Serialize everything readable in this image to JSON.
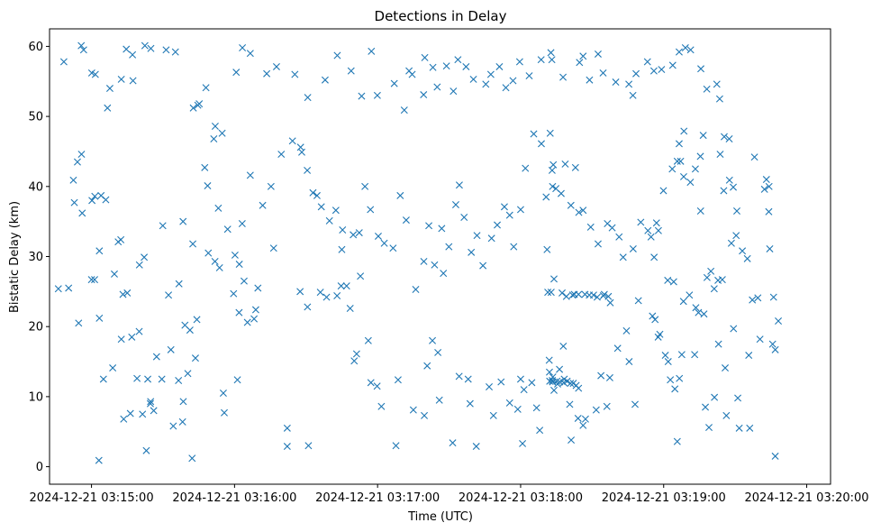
{
  "chart_data": {
    "type": "scatter",
    "title": "Detections in Delay",
    "xlabel": "Time (UTC)",
    "ylabel": "Bistatic Delay (km)",
    "marker": "x",
    "color": "#1f77b4",
    "x_unit": "seconds after 2024-12-21 03:14:00 UTC",
    "xlim": [
      42.4,
      370
    ],
    "ylim": [
      -2.5,
      62.5
    ],
    "x_ticks": [
      {
        "value": 60,
        "label": "2024-12-21 03:15:00"
      },
      {
        "value": 120,
        "label": "2024-12-21 03:16:00"
      },
      {
        "value": 180,
        "label": "2024-12-21 03:17:00"
      },
      {
        "value": 240,
        "label": "2024-12-21 03:18:00"
      },
      {
        "value": 300,
        "label": "2024-12-21 03:19:00"
      },
      {
        "value": 360,
        "label": "2024-12-21 03:20:00"
      }
    ],
    "y_ticks": [
      {
        "value": 0,
        "label": "0"
      },
      {
        "value": 10,
        "label": "10"
      },
      {
        "value": 20,
        "label": "20"
      },
      {
        "value": 30,
        "label": "30"
      },
      {
        "value": 40,
        "label": "40"
      },
      {
        "value": 50,
        "label": "50"
      },
      {
        "value": 60,
        "label": "60"
      }
    ],
    "points": [
      [
        63.1,
        0.9
      ],
      [
        83.0,
        2.3
      ],
      [
        94.3,
        5.8
      ],
      [
        102.2,
        1.2
      ],
      [
        187.7,
        3.0
      ],
      [
        240.8,
        3.3
      ],
      [
        261.2,
        3.8
      ],
      [
        264.1,
        6.9
      ],
      [
        267.2,
        6.8
      ],
      [
        305.7,
        3.6
      ],
      [
        336.1,
        5.5
      ],
      [
        346.8,
        1.5
      ],
      [
        60.0,
        26.7
      ],
      [
        61.3,
        26.7
      ],
      [
        63.3,
        30.8
      ],
      [
        63.3,
        21.2
      ],
      [
        65.0,
        12.5
      ],
      [
        69.6,
        27.5
      ],
      [
        72.3,
        32.4
      ],
      [
        73.2,
        24.6
      ],
      [
        75.0,
        24.8
      ],
      [
        76.9,
        18.5
      ],
      [
        80.0,
        19.3
      ],
      [
        82.1,
        29.9
      ],
      [
        80.1,
        28.8
      ],
      [
        87.3,
        15.7
      ],
      [
        89.5,
        12.5
      ],
      [
        93.3,
        16.7
      ],
      [
        96.5,
        12.3
      ],
      [
        96.7,
        26.1
      ],
      [
        98.2,
        6.4
      ],
      [
        98.5,
        9.3
      ],
      [
        99.2,
        20.2
      ],
      [
        101.3,
        19.5
      ],
      [
        102.5,
        31.8
      ],
      [
        104.2,
        21.0
      ],
      [
        109.0,
        30.5
      ],
      [
        111.8,
        29.3
      ],
      [
        113.7,
        28.4
      ],
      [
        115.3,
        10.5
      ],
      [
        115.7,
        7.7
      ],
      [
        119.6,
        24.7
      ],
      [
        121.2,
        12.4
      ],
      [
        121.9,
        22.0
      ],
      [
        124.0,
        26.5
      ],
      [
        125.4,
        20.6
      ],
      [
        128.2,
        21.1
      ],
      [
        128.9,
        22.4
      ],
      [
        129.8,
        25.5
      ],
      [
        142.1,
        5.5
      ],
      [
        142.1,
        2.9
      ],
      [
        147.5,
        25.0
      ],
      [
        150.6,
        22.8
      ],
      [
        151.0,
        3.0
      ],
      [
        156.0,
        24.9
      ],
      [
        158.6,
        24.2
      ],
      [
        163.0,
        24.4
      ],
      [
        164.7,
        25.8
      ],
      [
        167.0,
        25.8
      ],
      [
        168.5,
        22.6
      ],
      [
        170.2,
        15.1
      ],
      [
        171.2,
        16.1
      ],
      [
        176.1,
        18.0
      ],
      [
        177.2,
        12.0
      ],
      [
        179.8,
        11.5
      ],
      [
        181.6,
        8.6
      ],
      [
        188.6,
        12.4
      ],
      [
        195.0,
        8.1
      ],
      [
        199.6,
        7.3
      ],
      [
        200.8,
        14.4
      ],
      [
        203.0,
        18.0
      ],
      [
        205.3,
        16.3
      ],
      [
        205.9,
        9.5
      ],
      [
        211.5,
        3.4
      ],
      [
        214.2,
        12.9
      ],
      [
        218.0,
        12.5
      ],
      [
        218.8,
        9.0
      ],
      [
        221.4,
        2.9
      ],
      [
        226.8,
        11.4
      ],
      [
        228.6,
        7.3
      ],
      [
        231.8,
        12.1
      ],
      [
        235.4,
        9.1
      ],
      [
        238.8,
        8.2
      ],
      [
        240.0,
        12.5
      ],
      [
        241.4,
        11.0
      ],
      [
        244.7,
        12.0
      ],
      [
        246.7,
        8.4
      ],
      [
        248.0,
        5.2
      ],
      [
        252.0,
        15.2
      ],
      [
        254.0,
        10.9
      ],
      [
        256.3,
        13.9
      ],
      [
        257.9,
        17.2
      ],
      [
        260.6,
        8.9
      ],
      [
        266.2,
        5.9
      ],
      [
        271.7,
        8.1
      ],
      [
        273.7,
        13.0
      ],
      [
        276.2,
        8.6
      ],
      [
        277.4,
        12.7
      ],
      [
        280.7,
        16.9
      ],
      [
        284.4,
        19.4
      ],
      [
        285.5,
        15.0
      ],
      [
        288.0,
        8.9
      ],
      [
        295.3,
        21.5
      ],
      [
        296.4,
        21.0
      ],
      [
        297.7,
        18.5
      ],
      [
        298.4,
        18.9
      ],
      [
        300.7,
        15.9
      ],
      [
        301.9,
        15.0
      ],
      [
        302.8,
        12.4
      ],
      [
        304.7,
        11.1
      ],
      [
        306.6,
        12.6
      ],
      [
        307.6,
        16.0
      ],
      [
        313.0,
        16.0
      ],
      [
        317.5,
        8.5
      ],
      [
        319.0,
        5.6
      ],
      [
        321.3,
        9.9
      ],
      [
        323.0,
        17.5
      ],
      [
        325.8,
        14.1
      ],
      [
        326.3,
        7.3
      ],
      [
        331.1,
        9.8
      ],
      [
        331.7,
        5.5
      ],
      [
        335.7,
        15.9
      ],
      [
        340.4,
        18.2
      ],
      [
        345.7,
        17.5
      ],
      [
        348.1,
        20.8
      ],
      [
        251.4,
        24.9
      ],
      [
        252.8,
        24.9
      ],
      [
        254.0,
        26.8
      ],
      [
        257.4,
        24.8
      ],
      [
        261.8,
        24.5
      ],
      [
        268.8,
        24.5
      ],
      [
        272.1,
        24.2
      ],
      [
        274.7,
        24.4
      ],
      [
        276.8,
        24.3
      ],
      [
        277.6,
        23.4
      ],
      [
        275.1,
        24.6
      ],
      [
        259.2,
        24.3
      ],
      [
        262.5,
        24.6
      ],
      [
        264.3,
        24.6
      ],
      [
        267.0,
        24.6
      ],
      [
        270.6,
        24.5
      ],
      [
        252.2,
        12.2
      ],
      [
        253.3,
        12.3
      ],
      [
        255.2,
        12.2
      ],
      [
        256.4,
        12.1
      ],
      [
        258.1,
        12.0
      ],
      [
        259.5,
        12.2
      ],
      [
        260.9,
        11.9
      ],
      [
        262.1,
        11.9
      ],
      [
        263.3,
        11.6
      ],
      [
        255.5,
        11.8
      ],
      [
        258.3,
        12.5
      ],
      [
        252.1,
        13.5
      ],
      [
        253.4,
        12.1
      ],
      [
        264.3,
        11.2
      ],
      [
        253.5,
        12.8
      ],
      [
        289.4,
        23.7
      ],
      [
        296.0,
        29.9
      ],
      [
        301.7,
        26.6
      ],
      [
        304.2,
        26.4
      ],
      [
        308.3,
        23.6
      ],
      [
        310.8,
        24.5
      ],
      [
        313.5,
        22.7
      ],
      [
        314.6,
        22.0
      ],
      [
        318.2,
        27.0
      ],
      [
        319.8,
        27.9
      ],
      [
        321.2,
        25.4
      ],
      [
        322.8,
        26.6
      ],
      [
        324.6,
        26.7
      ],
      [
        316.9,
        21.8
      ],
      [
        329.3,
        19.7
      ],
      [
        337.2,
        23.8
      ],
      [
        315.5,
        36.5
      ],
      [
        325.2,
        39.4
      ],
      [
        328.4,
        31.9
      ],
      [
        330.4,
        33.0
      ],
      [
        333.0,
        30.8
      ],
      [
        335.1,
        29.7
      ],
      [
        346.8,
        16.7
      ],
      [
        339.5,
        24.1
      ],
      [
        342.3,
        39.6
      ],
      [
        338.1,
        44.2
      ],
      [
        343.1,
        41.0
      ],
      [
        344.2,
        40.0
      ],
      [
        344.1,
        36.4
      ],
      [
        344.5,
        31.1
      ],
      [
        346.1,
        24.2
      ],
      [
        46.1,
        25.4
      ],
      [
        50.4,
        25.5
      ],
      [
        52.8,
        37.7
      ],
      [
        54.6,
        20.5
      ],
      [
        52.4,
        40.9
      ],
      [
        54.1,
        43.5
      ],
      [
        55.8,
        44.6
      ],
      [
        56.1,
        36.2
      ],
      [
        60.2,
        38.0
      ],
      [
        61.4,
        38.6
      ],
      [
        64.0,
        38.7
      ],
      [
        66.0,
        38.1
      ],
      [
        68.9,
        14.1
      ],
      [
        71.2,
        32.1
      ],
      [
        73.5,
        6.8
      ],
      [
        72.5,
        18.2
      ],
      [
        76.3,
        7.6
      ],
      [
        79.1,
        12.6
      ],
      [
        81.4,
        7.5
      ],
      [
        83.6,
        12.5
      ],
      [
        84.7,
        9.0
      ],
      [
        84.8,
        9.3
      ],
      [
        86.1,
        8.0
      ],
      [
        89.9,
        34.4
      ],
      [
        92.3,
        24.5
      ],
      [
        98.4,
        35.0
      ],
      [
        100.4,
        13.3
      ],
      [
        103.6,
        15.5
      ],
      [
        107.5,
        42.7
      ],
      [
        108.7,
        40.1
      ],
      [
        111.3,
        46.8
      ],
      [
        113.2,
        36.9
      ],
      [
        117.1,
        33.9
      ],
      [
        120.2,
        30.2
      ],
      [
        122.0,
        28.9
      ],
      [
        123.2,
        34.7
      ],
      [
        126.6,
        41.6
      ],
      [
        131.8,
        37.3
      ],
      [
        135.3,
        40.0
      ],
      [
        136.4,
        31.2
      ],
      [
        139.6,
        44.6
      ],
      [
        144.3,
        46.5
      ],
      [
        147.7,
        45.6
      ],
      [
        148.2,
        44.9
      ],
      [
        150.5,
        42.3
      ],
      [
        152.9,
        39.1
      ],
      [
        154.6,
        38.7
      ],
      [
        156.4,
        37.1
      ],
      [
        159.8,
        35.1
      ],
      [
        162.5,
        36.6
      ],
      [
        165.3,
        33.8
      ],
      [
        165.0,
        31.0
      ],
      [
        169.8,
        33.1
      ],
      [
        172.3,
        33.4
      ],
      [
        172.8,
        27.2
      ],
      [
        174.7,
        40.0
      ],
      [
        177.0,
        36.7
      ],
      [
        180.3,
        32.9
      ],
      [
        182.8,
        31.9
      ],
      [
        186.5,
        31.2
      ],
      [
        189.5,
        38.7
      ],
      [
        192.0,
        35.2
      ],
      [
        196.0,
        25.3
      ],
      [
        199.4,
        29.3
      ],
      [
        201.5,
        34.4
      ],
      [
        203.9,
        28.8
      ],
      [
        206.9,
        34.0
      ],
      [
        207.6,
        27.6
      ],
      [
        209.9,
        31.4
      ],
      [
        212.8,
        37.4
      ],
      [
        214.3,
        40.2
      ],
      [
        216.3,
        35.6
      ],
      [
        219.3,
        30.6
      ],
      [
        221.7,
        33.0
      ],
      [
        224.2,
        28.7
      ],
      [
        227.8,
        32.6
      ],
      [
        230.2,
        34.5
      ],
      [
        233.2,
        37.1
      ],
      [
        235.4,
        35.9
      ],
      [
        237.1,
        31.4
      ],
      [
        240.0,
        36.7
      ],
      [
        242.0,
        42.6
      ],
      [
        245.5,
        47.5
      ],
      [
        248.7,
        46.1
      ],
      [
        250.7,
        38.5
      ],
      [
        251.1,
        31.0
      ],
      [
        252.4,
        47.6
      ],
      [
        253.7,
        43.1
      ],
      [
        253.2,
        42.3
      ],
      [
        253.4,
        40.0
      ],
      [
        254.8,
        39.7
      ],
      [
        257.0,
        39.0
      ],
      [
        258.7,
        43.2
      ],
      [
        261.1,
        37.3
      ],
      [
        263.0,
        42.7
      ],
      [
        264.4,
        36.3
      ],
      [
        266.2,
        36.6
      ],
      [
        269.4,
        34.2
      ],
      [
        272.5,
        31.8
      ],
      [
        276.4,
        34.7
      ],
      [
        278.4,
        34.1
      ],
      [
        281.3,
        32.8
      ],
      [
        283.0,
        29.9
      ],
      [
        287.2,
        31.1
      ],
      [
        290.4,
        34.9
      ],
      [
        293.4,
        33.7
      ],
      [
        294.7,
        32.8
      ],
      [
        297.0,
        34.8
      ],
      [
        297.8,
        33.7
      ],
      [
        299.9,
        39.4
      ],
      [
        303.6,
        42.5
      ],
      [
        305.7,
        43.6
      ],
      [
        307.1,
        43.6
      ],
      [
        308.4,
        41.4
      ],
      [
        311.2,
        40.6
      ],
      [
        313.3,
        42.5
      ],
      [
        315.4,
        44.3
      ],
      [
        316.6,
        47.3
      ],
      [
        306.5,
        46.1
      ],
      [
        308.5,
        47.9
      ],
      [
        323.5,
        52.5
      ],
      [
        323.7,
        44.6
      ],
      [
        325.4,
        47.1
      ],
      [
        327.5,
        46.8
      ],
      [
        327.6,
        40.9
      ],
      [
        329.2,
        39.9
      ],
      [
        330.7,
        36.5
      ],
      [
        48.4,
        57.8
      ],
      [
        55.7,
        60.1
      ],
      [
        56.7,
        59.5
      ],
      [
        60.1,
        56.2
      ],
      [
        61.6,
        56.0
      ],
      [
        67.7,
        54.0
      ],
      [
        66.7,
        51.2
      ],
      [
        72.5,
        55.3
      ],
      [
        74.6,
        59.6
      ],
      [
        77.2,
        58.8
      ],
      [
        77.4,
        55.1
      ],
      [
        82.4,
        60.1
      ],
      [
        84.9,
        59.7
      ],
      [
        91.3,
        59.5
      ],
      [
        95.2,
        59.2
      ],
      [
        102.7,
        51.2
      ],
      [
        104.6,
        51.6
      ],
      [
        105.2,
        51.8
      ],
      [
        108.0,
        54.1
      ],
      [
        111.9,
        48.6
      ],
      [
        114.8,
        47.6
      ],
      [
        120.7,
        56.3
      ],
      [
        123.3,
        59.8
      ],
      [
        126.6,
        59.0
      ],
      [
        133.5,
        56.1
      ],
      [
        137.6,
        57.1
      ],
      [
        145.3,
        56.0
      ],
      [
        150.7,
        52.7
      ],
      [
        158.0,
        55.2
      ],
      [
        163.1,
        58.7
      ],
      [
        168.9,
        56.5
      ],
      [
        173.3,
        52.9
      ],
      [
        177.4,
        59.3
      ],
      [
        179.9,
        53.0
      ],
      [
        187.0,
        54.7
      ],
      [
        191.2,
        50.9
      ],
      [
        193.2,
        56.5
      ],
      [
        194.5,
        56.0
      ],
      [
        199.3,
        53.1
      ],
      [
        199.8,
        58.4
      ],
      [
        203.2,
        57.0
      ],
      [
        205.0,
        54.2
      ],
      [
        208.9,
        57.2
      ],
      [
        211.8,
        53.6
      ],
      [
        213.7,
        58.1
      ],
      [
        217.1,
        57.1
      ],
      [
        220.2,
        55.3
      ],
      [
        225.4,
        54.6
      ],
      [
        227.5,
        56.0
      ],
      [
        231.1,
        57.1
      ],
      [
        233.8,
        54.1
      ],
      [
        236.8,
        55.1
      ],
      [
        239.6,
        57.8
      ],
      [
        243.6,
        55.8
      ],
      [
        248.6,
        58.1
      ],
      [
        252.7,
        59.1
      ],
      [
        253.1,
        58.1
      ],
      [
        257.8,
        55.6
      ],
      [
        264.7,
        57.7
      ],
      [
        266.2,
        58.6
      ],
      [
        268.9,
        55.2
      ],
      [
        272.5,
        58.9
      ],
      [
        274.6,
        56.2
      ],
      [
        279.9,
        54.9
      ],
      [
        285.4,
        54.6
      ],
      [
        287.1,
        53.0
      ],
      [
        288.4,
        56.1
      ],
      [
        293.2,
        57.8
      ],
      [
        295.9,
        56.5
      ],
      [
        299.1,
        56.7
      ],
      [
        303.8,
        57.3
      ],
      [
        306.5,
        59.2
      ],
      [
        309.1,
        59.8
      ],
      [
        311.3,
        59.5
      ],
      [
        315.6,
        56.8
      ],
      [
        318.1,
        53.9
      ],
      [
        322.3,
        54.6
      ]
    ]
  }
}
